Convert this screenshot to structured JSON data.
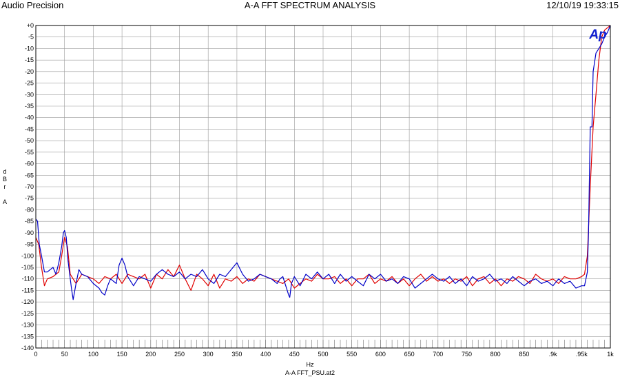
{
  "header": {
    "left": "Audio Precision",
    "title": "A-A FFT SPECTRUM ANALYSIS",
    "timestamp": "12/10/19 19:33:15"
  },
  "logo_text": "Ap",
  "filename": "A-A FFT_PSU.at2",
  "chart_data": {
    "type": "line",
    "title": "A-A FFT SPECTRUM ANALYSIS",
    "xlabel": "Hz",
    "ylabel_chars": [
      "d",
      "B",
      "r",
      "",
      "A"
    ],
    "xlim": [
      0,
      1000
    ],
    "ylim": [
      -140,
      0
    ],
    "grid": true,
    "y_ticks": [
      0,
      -5,
      -10,
      -15,
      -20,
      -25,
      -30,
      -35,
      -40,
      -45,
      -50,
      -55,
      -60,
      -65,
      -70,
      -75,
      -80,
      -85,
      -90,
      -95,
      -100,
      -105,
      -110,
      -115,
      -120,
      -125,
      -130,
      -135,
      -140
    ],
    "y_tick_labels": [
      "+0",
      "-5",
      "-10",
      "-15",
      "-20",
      "-25",
      "-30",
      "-35",
      "-40",
      "-45",
      "-50",
      "-55",
      "-60",
      "-65",
      "-70",
      "-75",
      "-80",
      "-85",
      "-90",
      "-95",
      "-100",
      "-105",
      "-110",
      "-115",
      "-120",
      "-125",
      "-130",
      "-135",
      "-140"
    ],
    "x_ticks": [
      0,
      50,
      100,
      150,
      200,
      250,
      300,
      350,
      400,
      450,
      500,
      550,
      600,
      650,
      700,
      750,
      800,
      850,
      900,
      950,
      1000
    ],
    "x_tick_labels": [
      "0",
      "50",
      "100",
      "150",
      "200",
      "250",
      "300",
      "350",
      "400",
      "450",
      "500",
      "550",
      "600",
      "650",
      "700",
      "750",
      "800",
      "850",
      ".9k",
      ".95k",
      "1k"
    ],
    "series": [
      {
        "color": "#e00000",
        "x": [
          0,
          5,
          10,
          15,
          20,
          30,
          40,
          45,
          50,
          55,
          60,
          70,
          80,
          90,
          100,
          110,
          120,
          130,
          140,
          150,
          160,
          170,
          180,
          190,
          200,
          210,
          220,
          230,
          240,
          250,
          260,
          270,
          280,
          290,
          300,
          310,
          320,
          330,
          340,
          350,
          360,
          370,
          380,
          390,
          400,
          410,
          420,
          430,
          440,
          450,
          460,
          470,
          480,
          490,
          500,
          510,
          520,
          530,
          540,
          550,
          560,
          570,
          580,
          590,
          600,
          610,
          620,
          630,
          640,
          650,
          660,
          670,
          680,
          690,
          700,
          710,
          720,
          730,
          740,
          750,
          760,
          770,
          780,
          790,
          800,
          810,
          820,
          830,
          840,
          850,
          860,
          870,
          880,
          890,
          900,
          910,
          920,
          930,
          940,
          950,
          955,
          960,
          965,
          970,
          975,
          980,
          985,
          990,
          995,
          1000
        ],
        "y": [
          -92,
          -95,
          -105,
          -113,
          -110,
          -109,
          -107,
          -100,
          -92,
          -96,
          -108,
          -112,
          -108,
          -109,
          -110,
          -112,
          -109,
          -110,
          -108,
          -112,
          -108,
          -109,
          -110,
          -108,
          -114,
          -108,
          -110,
          -106,
          -109,
          -104,
          -110,
          -115,
          -108,
          -110,
          -113,
          -108,
          -114,
          -110,
          -111,
          -109,
          -112,
          -110,
          -111,
          -108,
          -109,
          -110,
          -111,
          -112,
          -110,
          -114,
          -112,
          -110,
          -111,
          -108,
          -110,
          -110,
          -109,
          -112,
          -110,
          -113,
          -110,
          -110,
          -108,
          -112,
          -110,
          -111,
          -109,
          -112,
          -110,
          -113,
          -110,
          -108,
          -111,
          -109,
          -111,
          -110,
          -112,
          -110,
          -111,
          -109,
          -113,
          -110,
          -109,
          -112,
          -110,
          -113,
          -110,
          -111,
          -109,
          -110,
          -112,
          -108,
          -110,
          -111,
          -110,
          -112,
          -109,
          -110,
          -110,
          -109,
          -108,
          -100,
          -70,
          -44,
          -30,
          -15,
          -5,
          -2,
          -1,
          0
        ]
      },
      {
        "color": "#0000c8",
        "x": [
          0,
          3,
          6,
          10,
          15,
          20,
          25,
          30,
          35,
          40,
          45,
          48,
          50,
          53,
          56,
          60,
          62,
          65,
          70,
          75,
          80,
          90,
          100,
          110,
          115,
          120,
          125,
          130,
          140,
          145,
          150,
          155,
          160,
          170,
          180,
          190,
          200,
          210,
          220,
          230,
          240,
          250,
          260,
          270,
          280,
          290,
          300,
          310,
          320,
          330,
          340,
          350,
          360,
          370,
          380,
          390,
          400,
          410,
          420,
          425,
          430,
          440,
          442,
          445,
          450,
          460,
          470,
          480,
          490,
          500,
          510,
          520,
          530,
          540,
          550,
          560,
          570,
          580,
          590,
          600,
          610,
          620,
          630,
          640,
          650,
          660,
          670,
          680,
          690,
          700,
          710,
          720,
          730,
          740,
          750,
          760,
          770,
          780,
          790,
          800,
          810,
          820,
          830,
          840,
          850,
          860,
          870,
          880,
          890,
          900,
          910,
          920,
          930,
          940,
          950,
          955,
          960,
          962,
          965,
          968,
          970,
          975,
          980,
          985,
          990,
          995,
          1000
        ],
        "y": [
          -84,
          -85,
          -95,
          -100,
          -107,
          -107,
          -106,
          -105,
          -108,
          -103,
          -96,
          -90,
          -89,
          -92,
          -102,
          -110,
          -114,
          -119,
          -112,
          -106,
          -108,
          -109,
          -112,
          -114,
          -116,
          -117,
          -113,
          -110,
          -112,
          -104,
          -101,
          -104,
          -109,
          -113,
          -109,
          -110,
          -111,
          -108,
          -106,
          -108,
          -109,
          -107,
          -110,
          -108,
          -109,
          -106,
          -110,
          -112,
          -108,
          -109,
          -106,
          -103,
          -108,
          -111,
          -110,
          -108,
          -109,
          -110,
          -112,
          -110,
          -109,
          -117,
          -118,
          -112,
          -109,
          -113,
          -108,
          -110,
          -107,
          -110,
          -108,
          -112,
          -108,
          -111,
          -109,
          -111,
          -113,
          -108,
          -110,
          -108,
          -111,
          -110,
          -112,
          -109,
          -110,
          -114,
          -112,
          -110,
          -108,
          -110,
          -111,
          -109,
          -112,
          -110,
          -113,
          -109,
          -111,
          -110,
          -108,
          -111,
          -110,
          -112,
          -109,
          -111,
          -113,
          -111,
          -110,
          -112,
          -111,
          -113,
          -110,
          -112,
          -111,
          -114,
          -113,
          -113,
          -107,
          -90,
          -44,
          -44,
          -20,
          -12,
          -10,
          -8,
          -5,
          -3,
          0
        ]
      }
    ]
  }
}
